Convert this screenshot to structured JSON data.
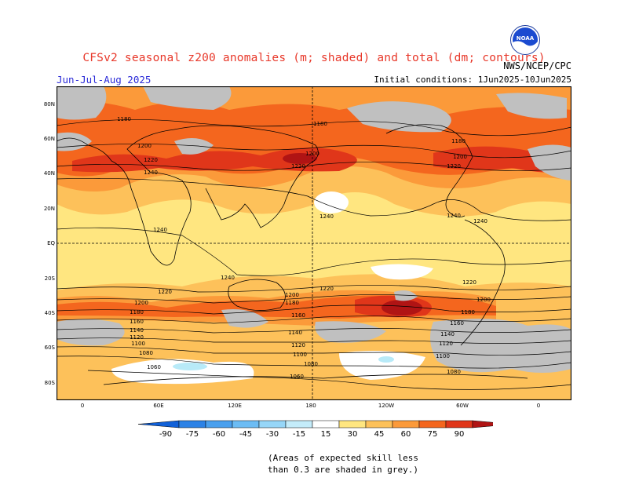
{
  "header": {
    "title": "CFSv2 seasonal z200 anomalies (m; shaded) and total (dm; contours)",
    "period": "Jun-Jul-Aug 2025",
    "initial_conditions": "Initial conditions: 1Jun2025-10Jun2025",
    "agency": "NWS/NCEP/CPC",
    "logo_text": "NOAA"
  },
  "map": {
    "lat_labels": [
      "80N",
      "60N",
      "40N",
      "20N",
      "EQ",
      "20S",
      "40S",
      "60S",
      "80S"
    ],
    "lon_labels": [
      "0",
      "60E",
      "120E",
      "180",
      "120W",
      "60W",
      "0"
    ],
    "contour_labels": [
      "1180",
      "1180",
      "1180",
      "1200",
      "1200",
      "1200",
      "1220",
      "1220",
      "1220",
      "1240",
      "1240",
      "1240",
      "1240",
      "1240",
      "1240",
      "1220",
      "1220",
      "1220",
      "1200",
      "1200",
      "1200",
      "1180",
      "1180",
      "1180",
      "1160",
      "1160",
      "1160",
      "1140",
      "1140",
      "1140",
      "1120",
      "1120",
      "1120",
      "1100",
      "1100",
      "1100",
      "1080",
      "1080",
      "1080",
      "1060",
      "1060"
    ],
    "colors": {
      "grey": "#c0c0c0",
      "pos15": "#ffe680",
      "pos30": "#fdc15a",
      "pos45": "#fb9a3a",
      "pos60": "#f4661e",
      "pos75": "#e0361a",
      "pos90": "#b01414",
      "neg15": "#b8eaf8",
      "ocean_white": "#ffffff"
    }
  },
  "colorbar": {
    "labels": [
      "-90",
      "-75",
      "-60",
      "-45",
      "-30",
      "-15",
      "15",
      "30",
      "45",
      "60",
      "75",
      "90"
    ],
    "colors": [
      "#1060d8",
      "#2c82e6",
      "#4aa0ee",
      "#6cbcf4",
      "#96d6f8",
      "#c4ecfa",
      "#ffffff",
      "#ffe680",
      "#fdc15a",
      "#fb9a3a",
      "#f4661e",
      "#e0361a",
      "#b01414"
    ]
  },
  "note": {
    "line1": "(Areas of expected skill less",
    "line2": "than 0.3 are shaded in grey.)"
  }
}
